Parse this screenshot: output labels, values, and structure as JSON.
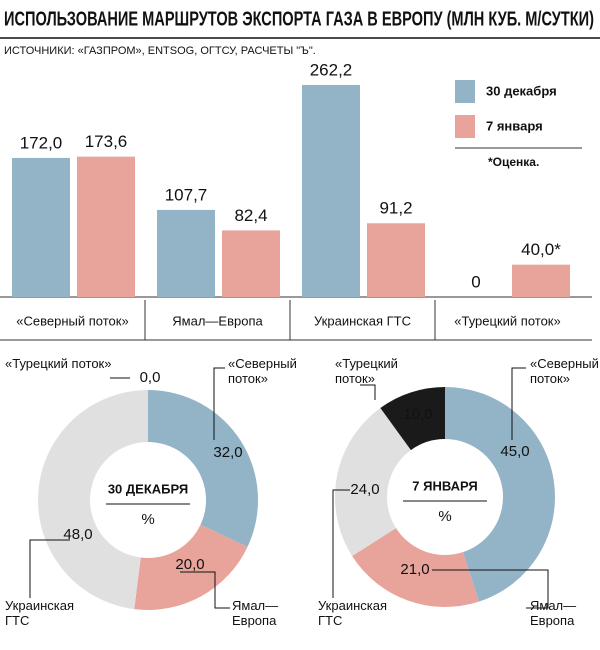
{
  "chart_data": [
    {
      "type": "bar",
      "title": "ИСПОЛЬЗОВАНИЕ МАРШРУТОВ ЭКСПОРТА ГАЗА В ЕВРОПУ (МЛН КУБ. М/СУТКИ)",
      "subtitle": "ИСТОЧНИКИ: «ГАЗПРОМ», ENTSOG, ОГТСУ, РАСЧЕТЫ \"Ъ\".",
      "categories": [
        "«Северный поток»",
        "Ямал—Европа",
        "Украинская ГТС",
        "«Турецкий поток»"
      ],
      "series": [
        {
          "name": "30 декабря",
          "color": "#93b3c7",
          "values": [
            172.0,
            107.7,
            262.2,
            0
          ],
          "value_labels": [
            "172,0",
            "107,7",
            "262,2",
            "0"
          ]
        },
        {
          "name": "7 января",
          "color": "#e8a49b",
          "values": [
            173.6,
            82.4,
            91.2,
            40.0
          ],
          "value_labels": [
            "173,6",
            "82,4",
            "91,2",
            "40,0*"
          ]
        }
      ],
      "note": "*Оценка."
    },
    {
      "type": "pie",
      "center_label": "30 ДЕКАБРЯ",
      "unit_label": "%",
      "categories": [
        "«Северный\nпоток»",
        "Ямал—\nЕвропа",
        "Украинская\nГТС",
        "«Турецкий поток»"
      ],
      "colors": [
        "#93b3c7",
        "#e8a49b",
        "#e0e0e0",
        "#1a1a1a"
      ],
      "values": [
        32.0,
        20.0,
        48.0,
        0.0
      ],
      "value_labels": [
        "32,0",
        "20,0",
        "48,0",
        "0,0"
      ]
    },
    {
      "type": "pie",
      "center_label": "7 ЯНВАРЯ",
      "unit_label": "%",
      "categories": [
        "«Северный\nпоток»",
        "Ямал—\nЕвропа",
        "Украинская\nГТС",
        "«Турецкий\nпоток»"
      ],
      "colors": [
        "#93b3c7",
        "#e8a49b",
        "#e0e0e0",
        "#1a1a1a"
      ],
      "values": [
        45.0,
        21.0,
        24.0,
        10.0
      ],
      "value_labels": [
        "45,0",
        "21,0",
        "24,0",
        "10,0"
      ]
    }
  ]
}
